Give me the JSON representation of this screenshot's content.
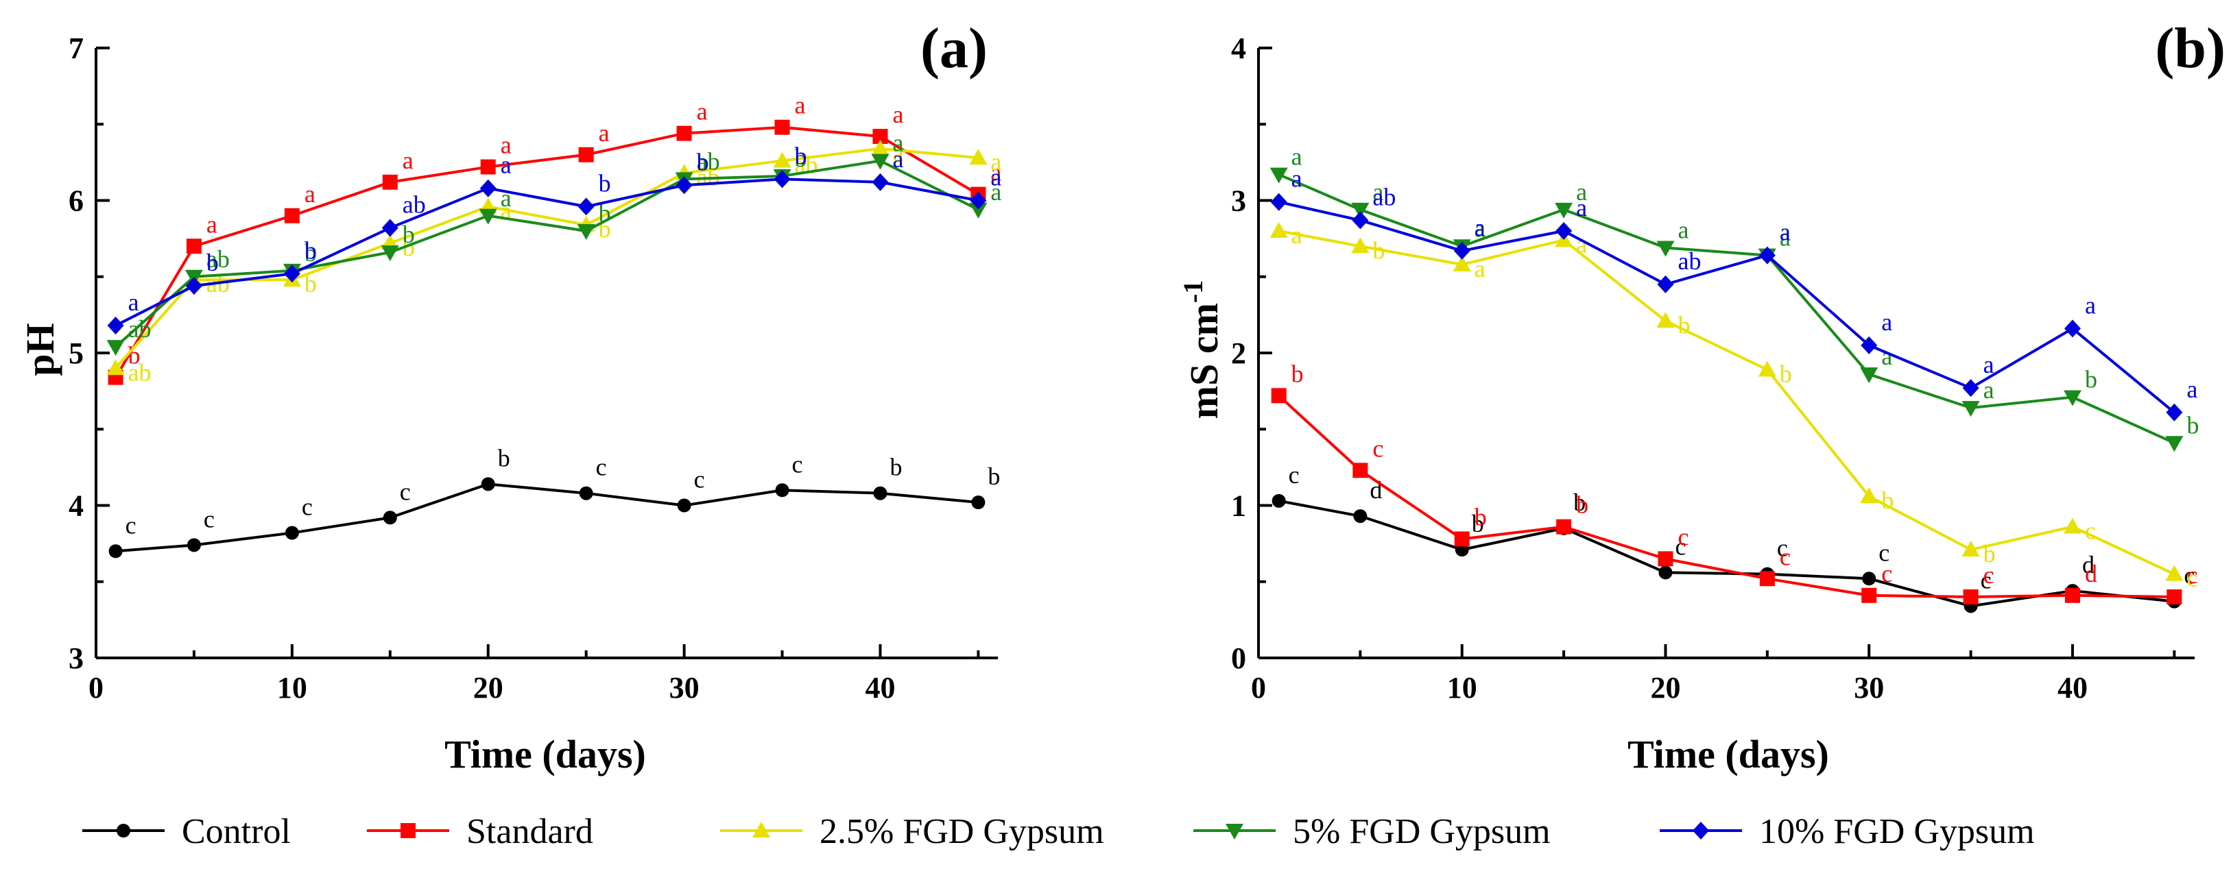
{
  "colors": {
    "Control": "#000000",
    "Standard": "#ff0000",
    "2.5% FGD Gypsum": "#e8e000",
    "5% FGD Gypsum": "#1a8a1a",
    "10% FGD Gypsum": "#0000dd"
  },
  "legend": [
    {
      "name": "Control",
      "marker": "circle"
    },
    {
      "name": "Standard",
      "marker": "square"
    },
    {
      "name": "2.5% FGD Gypsum",
      "marker": "triangle-up"
    },
    {
      "name": "5% FGD Gypsum",
      "marker": "triangle-down"
    },
    {
      "name": "10% FGD Gypsum",
      "marker": "diamond"
    }
  ],
  "chart_data": [
    {
      "type": "line",
      "panel": "(a)",
      "xlabel": "Time (days)",
      "ylabel": "pH",
      "xlim": [
        0,
        46
      ],
      "ylim": [
        3,
        7
      ],
      "xticks": [
        0,
        10,
        20,
        30,
        40
      ],
      "yticks": [
        3,
        4,
        5,
        6,
        7
      ],
      "x": [
        1,
        5,
        10,
        15,
        20,
        25,
        30,
        35,
        40,
        45
      ],
      "series": [
        {
          "name": "Control",
          "values": [
            3.7,
            3.74,
            3.82,
            3.92,
            4.14,
            4.08,
            4.0,
            4.1,
            4.08,
            4.02
          ],
          "letters": [
            "c",
            "c",
            "c",
            "c",
            "b",
            "c",
            "c",
            "c",
            "b",
            "b"
          ]
        },
        {
          "name": "Standard",
          "values": [
            4.84,
            5.7,
            5.9,
            6.12,
            6.22,
            6.3,
            6.44,
            6.48,
            6.42,
            6.04
          ],
          "letters": [
            "b",
            "a",
            "a",
            "a",
            "a",
            "a",
            "a",
            "a",
            "a",
            "a"
          ]
        },
        {
          "name": "2.5% FGD Gypsum",
          "values": [
            4.9,
            5.48,
            5.48,
            5.72,
            5.96,
            5.84,
            6.18,
            6.26,
            6.34,
            6.28
          ],
          "letters": [
            "ab",
            "ab",
            "b",
            "b",
            "a",
            "b",
            "ab",
            "ab",
            "a",
            "a"
          ]
        },
        {
          "name": "5% FGD Gypsum",
          "values": [
            5.04,
            5.5,
            5.54,
            5.66,
            5.9,
            5.8,
            6.14,
            6.16,
            6.26,
            5.94
          ],
          "letters": [
            "ab",
            "ab",
            "b",
            "b",
            "a",
            "b",
            "ab",
            "b",
            "a",
            "a"
          ]
        },
        {
          "name": "10% FGD Gypsum",
          "values": [
            5.18,
            5.44,
            5.52,
            5.82,
            6.08,
            5.96,
            6.1,
            6.14,
            6.12,
            6.0
          ],
          "letters": [
            "a",
            "b",
            "b",
            "ab",
            "a",
            "b",
            "b",
            "b",
            "a",
            "a"
          ]
        }
      ]
    },
    {
      "type": "line",
      "panel": "(b)",
      "xlabel": "Time (days)",
      "ylabel": "mS cm",
      "ylabel_sup": "-1",
      "xlim": [
        0,
        46
      ],
      "ylim": [
        0,
        4
      ],
      "xticks": [
        0,
        10,
        20,
        30,
        40
      ],
      "yticks": [
        0,
        1,
        2,
        3,
        4
      ],
      "x": [
        1,
        5,
        10,
        15,
        20,
        25,
        30,
        35,
        40,
        45
      ],
      "series": [
        {
          "name": "Control",
          "values": [
            1.03,
            0.93,
            0.71,
            0.85,
            0.56,
            0.55,
            0.52,
            0.34,
            0.44,
            0.37
          ],
          "letters": [
            "c",
            "d",
            "b",
            "b",
            "c",
            "c",
            "c",
            "c",
            "d",
            "c"
          ]
        },
        {
          "name": "Standard",
          "values": [
            1.72,
            1.23,
            0.78,
            0.86,
            0.65,
            0.52,
            0.41,
            0.4,
            0.41,
            0.4
          ],
          "letters": [
            "b",
            "c",
            "b",
            "b",
            "c",
            "c",
            "c",
            "c",
            "d",
            "c"
          ]
        },
        {
          "name": "2.5% FGD Gypsum",
          "values": [
            2.8,
            2.7,
            2.58,
            2.74,
            2.21,
            1.89,
            1.06,
            0.71,
            0.86,
            0.55
          ],
          "letters": [
            "a",
            "b",
            "a",
            "a",
            "b",
            "b",
            "b",
            "b",
            "c",
            "c"
          ]
        },
        {
          "name": "5% FGD Gypsum",
          "values": [
            3.17,
            2.94,
            2.7,
            2.94,
            2.69,
            2.64,
            1.86,
            1.64,
            1.71,
            1.41
          ],
          "letters": [
            "a",
            "a",
            "a",
            "a",
            "a",
            "a",
            "a",
            "a",
            "b",
            "b"
          ]
        },
        {
          "name": "10% FGD Gypsum",
          "values": [
            2.99,
            2.87,
            2.67,
            2.8,
            2.45,
            2.64,
            2.05,
            1.77,
            2.16,
            1.61
          ],
          "letters": [
            "a",
            "ab",
            "a",
            "a",
            "ab",
            "a",
            "a",
            "a",
            "a",
            "a"
          ]
        }
      ]
    }
  ]
}
